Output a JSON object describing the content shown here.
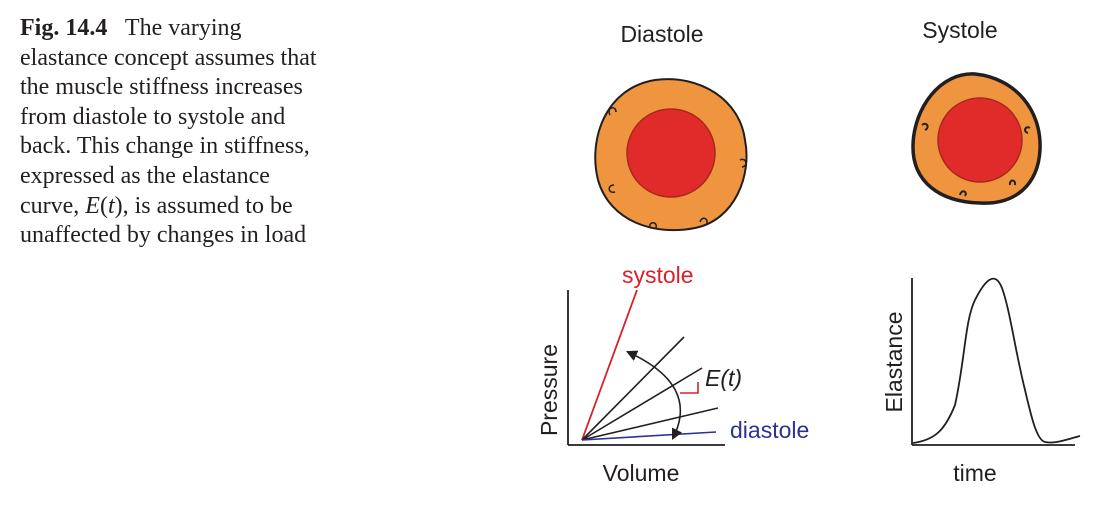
{
  "caption": {
    "label": "Fig. 14.4",
    "text_1": "The varying elastance concept assumes that the muscle stiffness increases from diastole to systole and back. This change in stiffness, expressed as the elastance curve, ",
    "E": "E",
    "open": "(",
    "t": "t",
    "close": ")",
    "text_2": ", is assumed to be unaffected by changes in load"
  },
  "labels": {
    "diastole_title": "Diastole",
    "systole_title": "Systole",
    "systole": "systole",
    "diastole": "diastole",
    "et": "E(t)",
    "pressure": "Pressure",
    "volume": "Volume",
    "elastance": "Elastance",
    "time": "time"
  },
  "colors": {
    "orange": "#f0953f",
    "red": "#e12b2b",
    "systole_line": "#d6232a",
    "diastole_line": "#2e3192",
    "ink": "#231f20"
  }
}
